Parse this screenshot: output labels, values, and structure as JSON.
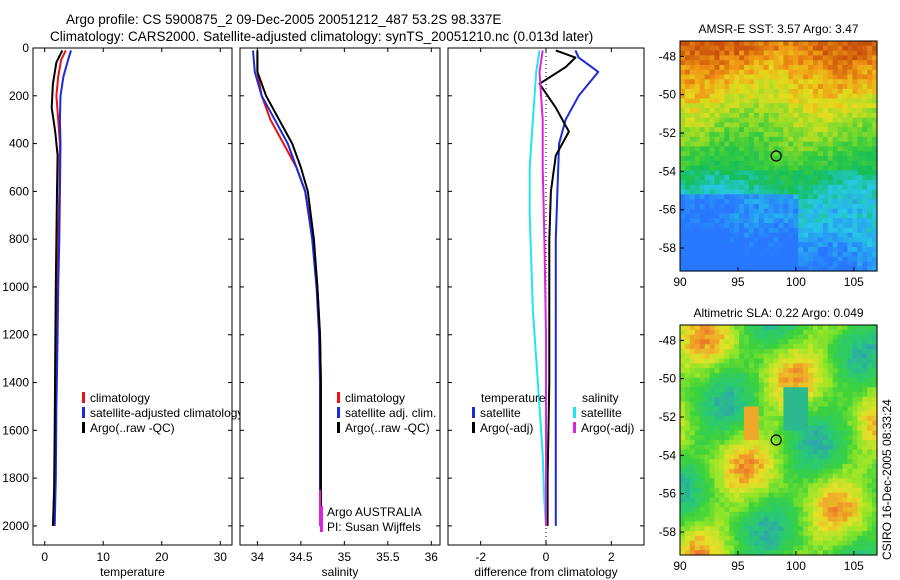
{
  "header": {
    "line1": "Argo profile: CS 5900875_2 09-Dec-2005 20051212_487 53.2S 98.337E",
    "line2": "Climatology: CARS2000. Satellite-adjusted climatology: synTS_20051210.nc (0.013d later)"
  },
  "side_label": "CSIRO 16-Dec-2005 08:33:24",
  "colors": {
    "red": "#ee1111",
    "blue": "#1a2bd9",
    "black": "#000000",
    "cyan": "#22e6ee",
    "magenta": "#dd22dd"
  },
  "chart_data": [
    {
      "id": "temperature",
      "type": "line",
      "xlabel": "temperature",
      "xlim": [
        -2,
        32
      ],
      "ylim": [
        2080,
        0
      ],
      "xticks": [
        0,
        10,
        20,
        30
      ],
      "yticks": [
        0,
        200,
        400,
        600,
        800,
        1000,
        1200,
        1400,
        1600,
        1800,
        2000
      ],
      "legend": [
        "climatology",
        "satellite-adjusted climatology",
        "Argo(..raw -QC)"
      ],
      "series": [
        {
          "name": "climatology",
          "color": "red",
          "x": [
            3.6,
            2.8,
            2.3,
            2.0,
            2.3,
            2.6,
            2.5,
            2.3,
            2.2,
            2.0,
            1.9,
            1.7,
            1.5
          ],
          "y": [
            10,
            50,
            120,
            200,
            300,
            400,
            600,
            800,
            1000,
            1200,
            1500,
            1800,
            2000
          ]
        },
        {
          "name": "satellite-adjusted climatology",
          "color": "blue",
          "x": [
            4.5,
            4.0,
            3.2,
            2.7,
            2.6,
            2.7,
            2.6,
            2.5,
            2.3,
            2.2,
            2.0,
            1.9,
            1.7
          ],
          "y": [
            10,
            50,
            120,
            200,
            300,
            400,
            600,
            800,
            1000,
            1200,
            1500,
            1800,
            2000
          ]
        },
        {
          "name": "Argo(..raw -QC)",
          "color": "black",
          "x": [
            3.0,
            2.0,
            1.4,
            1.2,
            1.8,
            2.2,
            2.1,
            2.0,
            1.9,
            1.8,
            1.7,
            1.6,
            1.4
          ],
          "y": [
            10,
            60,
            150,
            250,
            350,
            450,
            600,
            800,
            1000,
            1300,
            1600,
            1850,
            2000
          ]
        }
      ]
    },
    {
      "id": "salinity",
      "type": "line",
      "xlabel": "salinity",
      "xlim": [
        33.8,
        36.1
      ],
      "ylim": [
        2080,
        0
      ],
      "xticks": [
        34,
        34.5,
        35,
        35.5,
        36
      ],
      "legend": [
        "climatology",
        "satellite adj. clim.",
        "Argo(..raw -QC)"
      ],
      "annotation": [
        "Argo AUSTRALIA",
        "PI: Susan Wijffels"
      ],
      "series": [
        {
          "name": "climatology",
          "color": "red",
          "x": [
            34.0,
            34.0,
            34.05,
            34.15,
            34.3,
            34.45,
            34.55,
            34.64,
            34.69,
            34.72,
            34.73,
            34.73,
            34.73
          ],
          "y": [
            10,
            100,
            200,
            300,
            400,
            500,
            600,
            800,
            1000,
            1200,
            1400,
            1700,
            2000
          ]
        },
        {
          "name": "satellite adj. clim.",
          "color": "blue",
          "x": [
            33.95,
            33.97,
            34.05,
            34.2,
            34.35,
            34.45,
            34.55,
            34.63,
            34.68,
            34.71,
            34.72,
            34.72,
            34.72
          ],
          "y": [
            10,
            100,
            200,
            300,
            400,
            500,
            600,
            800,
            1000,
            1200,
            1400,
            1700,
            2000
          ]
        },
        {
          "name": "Argo(..raw -QC)",
          "color": "black",
          "x": [
            34.0,
            34.0,
            34.1,
            34.25,
            34.4,
            34.5,
            34.58,
            34.65,
            34.69,
            34.72,
            34.73,
            34.73,
            34.73
          ],
          "y": [
            10,
            100,
            200,
            300,
            400,
            500,
            600,
            800,
            1000,
            1200,
            1400,
            1700,
            2000
          ]
        },
        {
          "name": "Argo AUSTRALIA",
          "color": "magenta",
          "x": [
            34.72,
            34.72
          ],
          "y": [
            1850,
            2000
          ]
        }
      ]
    },
    {
      "id": "difference",
      "type": "line",
      "xlabel": "difference from climatology",
      "xlim": [
        -3,
        3
      ],
      "ylim": [
        2080,
        0
      ],
      "xticks": [
        -2,
        0,
        2
      ],
      "legend_temperature": [
        "temperature",
        "satellite",
        "Argo(-adj)"
      ],
      "legend_salinity": [
        "salinity",
        "satellite",
        "Argo(-adj)"
      ],
      "series": [
        {
          "name": "temperature satellite",
          "color": "blue",
          "x": [
            0.9,
            1.0,
            1.6,
            1.0,
            0.6,
            0.4,
            0.35,
            0.3,
            0.3,
            0.3,
            0.3,
            0.3
          ],
          "y": [
            10,
            40,
            100,
            200,
            300,
            400,
            600,
            800,
            1000,
            1400,
            1800,
            2000
          ]
        },
        {
          "name": "temperature Argo(-adj)",
          "color": "black",
          "x": [
            0.3,
            0.9,
            0.6,
            -0.2,
            0.3,
            0.7,
            0.3,
            0.15,
            0.1,
            0.1,
            0.1,
            0.05,
            0.05
          ],
          "y": [
            10,
            40,
            80,
            150,
            250,
            350,
            450,
            600,
            800,
            1000,
            1400,
            1800,
            2000
          ]
        },
        {
          "name": "salinity satellite",
          "color": "cyan",
          "x": [
            -0.2,
            -0.3,
            -0.4,
            -0.5,
            -0.5,
            -0.45,
            -0.4,
            -0.3,
            -0.2,
            -0.1,
            -0.05,
            0.0
          ],
          "y": [
            10,
            100,
            300,
            500,
            700,
            900,
            1100,
            1300,
            1500,
            1700,
            1900,
            2000
          ]
        },
        {
          "name": "salinity Argo(-adj)",
          "color": "magenta",
          "x": [
            -0.1,
            -0.2,
            -0.1,
            -0.1,
            -0.05,
            0.0,
            0.0,
            0.0
          ],
          "y": [
            10,
            100,
            300,
            500,
            800,
            1200,
            1600,
            2000
          ]
        }
      ]
    },
    {
      "id": "sst_map",
      "type": "heatmap",
      "title": "AMSR-E SST: 3.57 Argo: 3.47",
      "xlim": [
        90,
        107
      ],
      "ylim": [
        -59.2,
        -47.2
      ],
      "xticks": [
        90,
        95,
        100,
        105
      ],
      "yticks": [
        -48,
        -50,
        -52,
        -54,
        -56,
        -58
      ],
      "marker": {
        "lon": 98.3,
        "lat": -53.2
      }
    },
    {
      "id": "sla_map",
      "type": "heatmap",
      "title": "Altimetric SLA: 0.22 Argo: 0.049",
      "xlim": [
        90,
        107
      ],
      "ylim": [
        -59.2,
        -47.2
      ],
      "xticks": [
        90,
        95,
        100,
        105
      ],
      "yticks": [
        -48,
        -50,
        -52,
        -54,
        -56,
        -58
      ],
      "marker": {
        "lon": 98.3,
        "lat": -53.2
      }
    }
  ]
}
